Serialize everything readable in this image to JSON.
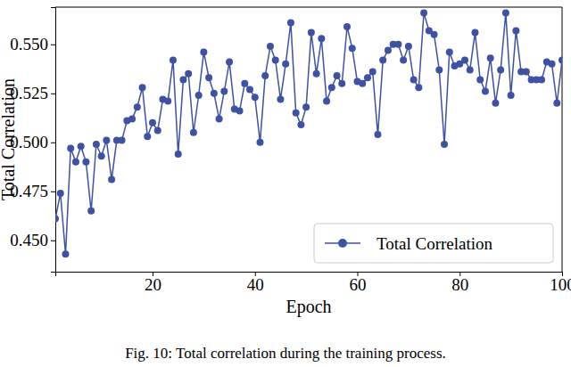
{
  "chart_data": {
    "type": "line",
    "x_label": "Epoch",
    "y_label": "Total Correlation",
    "caption": "Fig. 10: Total correlation during the training process.",
    "x": [
      1,
      2,
      3,
      4,
      5,
      6,
      7,
      8,
      9,
      10,
      11,
      12,
      13,
      14,
      15,
      16,
      17,
      18,
      19,
      20,
      21,
      22,
      23,
      24,
      25,
      26,
      27,
      28,
      29,
      30,
      31,
      32,
      33,
      34,
      35,
      36,
      37,
      38,
      39,
      40,
      41,
      42,
      43,
      44,
      45,
      46,
      47,
      48,
      49,
      50,
      51,
      52,
      53,
      54,
      55,
      56,
      57,
      58,
      59,
      60,
      61,
      62,
      63,
      64,
      65,
      66,
      67,
      68,
      69,
      70,
      71,
      72,
      73,
      74,
      75,
      76,
      77,
      78,
      79,
      80,
      81,
      82,
      83,
      84,
      85,
      86,
      87,
      88,
      89,
      90,
      91,
      92,
      93,
      94,
      95,
      96,
      97,
      98,
      99,
      100
    ],
    "series": [
      {
        "name": "Total Correlation",
        "color": "#3f51a3",
        "marker": "o",
        "line_style": "solid",
        "values": [
          0.461,
          0.474,
          0.443,
          0.497,
          0.49,
          0.498,
          0.49,
          0.465,
          0.499,
          0.493,
          0.501,
          0.481,
          0.501,
          0.501,
          0.511,
          0.512,
          0.518,
          0.528,
          0.503,
          0.51,
          0.506,
          0.522,
          0.521,
          0.542,
          0.494,
          0.532,
          0.535,
          0.505,
          0.524,
          0.546,
          0.533,
          0.525,
          0.512,
          0.526,
          0.541,
          0.517,
          0.516,
          0.53,
          0.527,
          0.523,
          0.5,
          0.534,
          0.549,
          0.542,
          0.522,
          0.54,
          0.561,
          0.515,
          0.509,
          0.518,
          0.556,
          0.535,
          0.553,
          0.521,
          0.528,
          0.534,
          0.53,
          0.559,
          0.548,
          0.531,
          0.53,
          0.533,
          0.536,
          0.504,
          0.542,
          0.547,
          0.55,
          0.55,
          0.542,
          0.549,
          0.532,
          0.528,
          0.566,
          0.557,
          0.555,
          0.537,
          0.499,
          0.546,
          0.539,
          0.54,
          0.542,
          0.537,
          0.556,
          0.532,
          0.526,
          0.543,
          0.52,
          0.537,
          0.566,
          0.524,
          0.557,
          0.536,
          0.536,
          0.532,
          0.532,
          0.532,
          0.541,
          0.54,
          0.52,
          0.542
        ]
      }
    ],
    "xlim": [
      1,
      100
    ],
    "xticks": [
      20,
      40,
      60,
      80,
      100
    ],
    "ylim": [
      0.434,
      0.569
    ],
    "yticks": [
      {
        "value": 0.45,
        "label": "0.450"
      },
      0.475,
      {
        "value": 0.5,
        "label": "0.500"
      },
      0.525,
      {
        "value": 0.55,
        "label": "0.550"
      }
    ],
    "grid": false,
    "legend": "lower right"
  }
}
